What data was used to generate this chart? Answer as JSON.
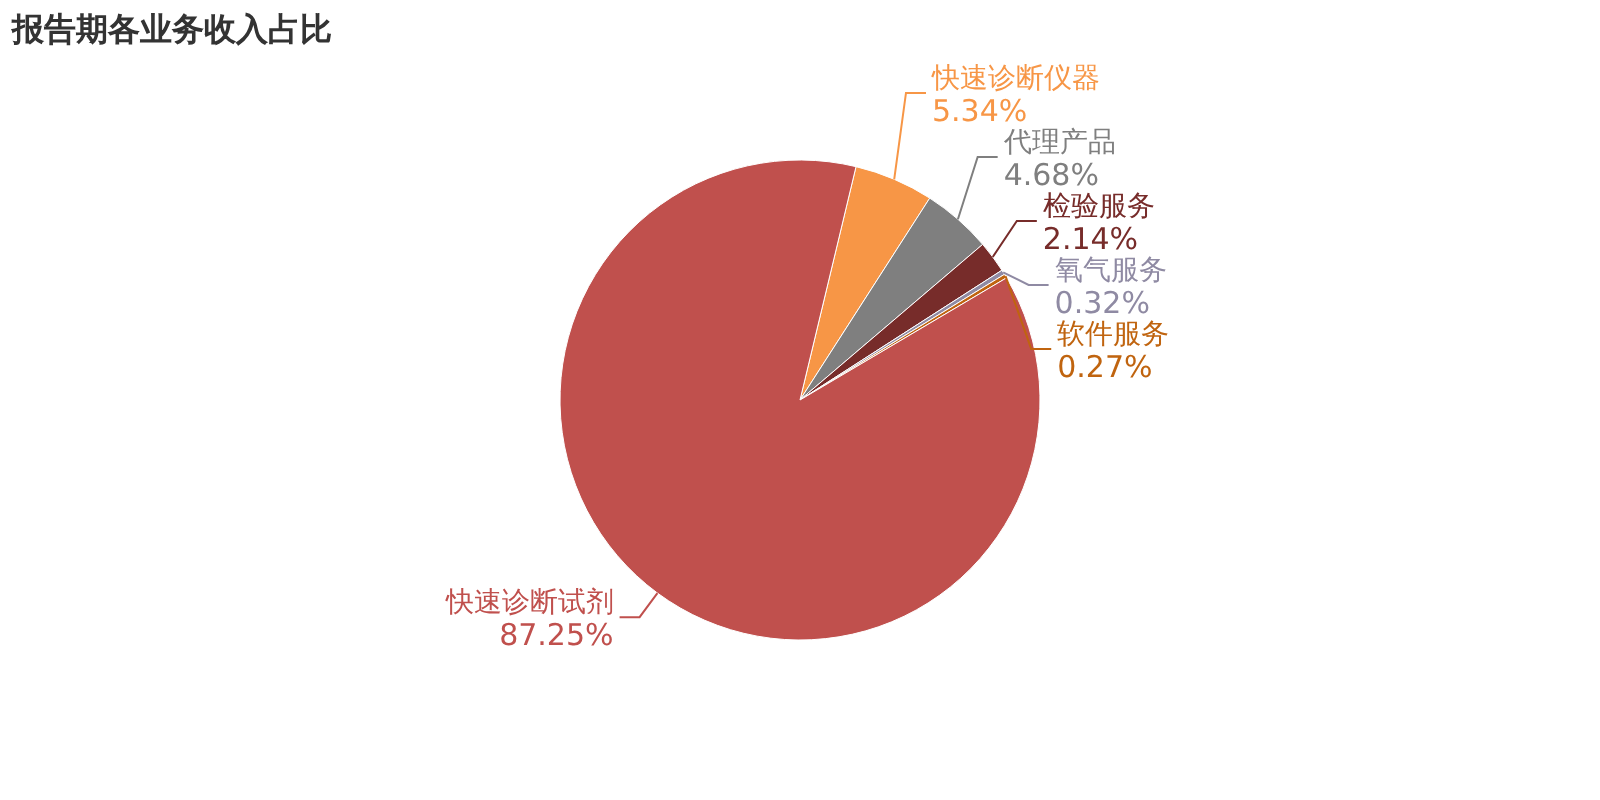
{
  "chart_data": {
    "type": "pie",
    "title": "报告期各业务收入占比",
    "categories": [
      "快速诊断仪器",
      "代理产品",
      "检验服务",
      "氧气服务",
      "软件服务",
      "快速诊断试剂"
    ],
    "values": [
      5.34,
      4.68,
      2.14,
      0.32,
      0.27,
      87.25
    ],
    "value_labels": [
      "5.34%",
      "4.68%",
      "2.14%",
      "0.32%",
      "0.27%",
      "87.25%"
    ],
    "colors": [
      "#f79646",
      "#7f7f7f",
      "#772c2a",
      "#8f8aa3",
      "#c0640f",
      "#c0504d"
    ]
  }
}
